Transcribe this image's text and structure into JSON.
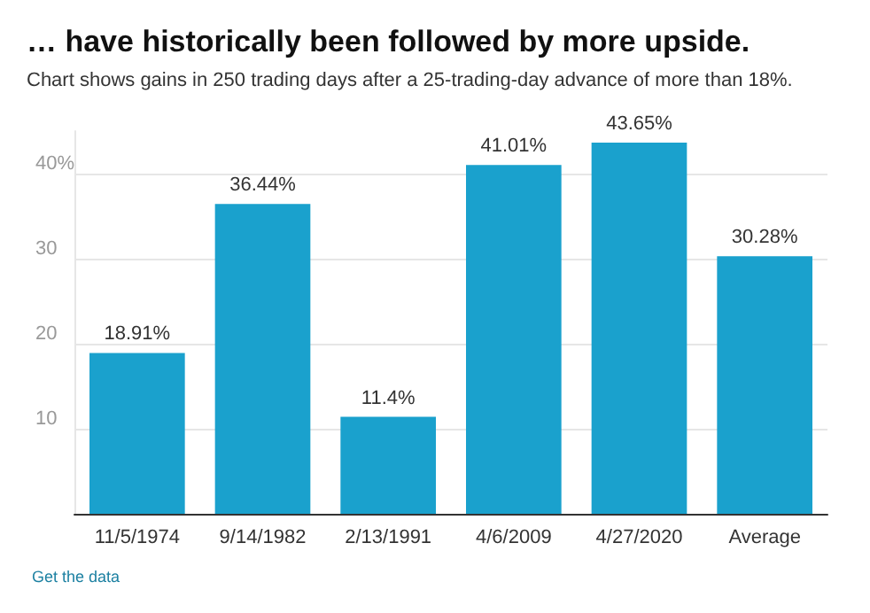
{
  "chart_data": {
    "type": "bar",
    "title": "… have historically been followed by more upside.",
    "subtitle": "Chart shows gains in 250 trading days after a 25-trading-day advance of more than 18%.",
    "categories": [
      "11/5/1974",
      "9/14/1982",
      "2/13/1991",
      "4/6/2009",
      "4/27/2020",
      "Average"
    ],
    "values": [
      18.91,
      36.44,
      11.4,
      41.01,
      43.65,
      30.28
    ],
    "color": "#1aa1cd",
    "value_labels": [
      "18.91%",
      "36.44%",
      "11.4%",
      "41.01%",
      "43.65%",
      "30.28%"
    ],
    "ylim": [
      0,
      45
    ],
    "yticks": [
      10,
      20,
      30,
      {
        "value": 40,
        "label": "40%"
      }
    ],
    "grid": "y",
    "annotations": [
      "Get the data"
    ]
  }
}
